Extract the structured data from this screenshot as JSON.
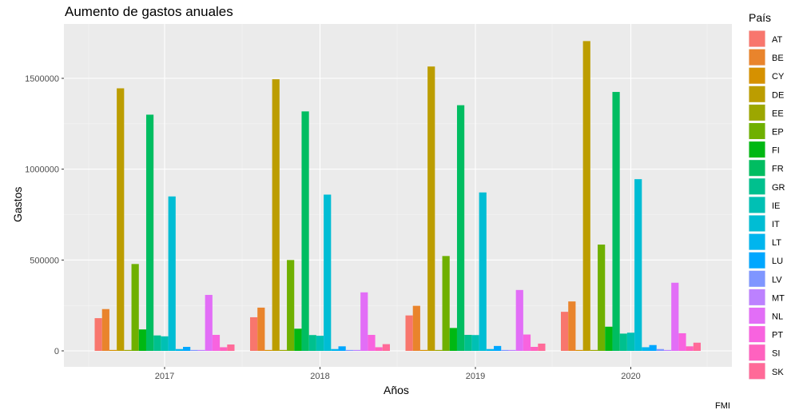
{
  "chart_data": {
    "type": "bar",
    "title": "Aumento de gastos anuales",
    "xlabel": "Años",
    "ylabel": "Gastos",
    "caption": "FMI",
    "legend_title": "País",
    "legend_position": "right",
    "grid": true,
    "ylim": [
      -80000,
      1790000
    ],
    "yticks": [
      0,
      500000,
      1000000,
      1500000
    ],
    "ytick_labels": [
      "0",
      "500000",
      "1000000",
      "1500000"
    ],
    "categories": [
      "2017",
      "2018",
      "2019",
      "2020"
    ],
    "series": [
      {
        "name": "AT",
        "color": "#F8766D",
        "values": [
          180000,
          185000,
          195000,
          215000
        ]
      },
      {
        "name": "BE",
        "color": "#E9842C",
        "values": [
          230000,
          238000,
          248000,
          272000
        ]
      },
      {
        "name": "CY",
        "color": "#D69100",
        "values": [
          5000,
          5000,
          5000,
          5000
        ]
      },
      {
        "name": "DE",
        "color": "#BC9D00",
        "values": [
          1445000,
          1495000,
          1565000,
          1705000
        ]
      },
      {
        "name": "EE",
        "color": "#9CA700",
        "values": [
          5000,
          5000,
          5000,
          5000
        ]
      },
      {
        "name": "EP",
        "color": "#6FB000",
        "values": [
          478000,
          500000,
          522000,
          585000
        ]
      },
      {
        "name": "FI",
        "color": "#00B813",
        "values": [
          118000,
          122000,
          126000,
          133000
        ]
      },
      {
        "name": "FR",
        "color": "#00BD61",
        "values": [
          1300000,
          1318000,
          1352000,
          1425000
        ]
      },
      {
        "name": "GR",
        "color": "#00C08E",
        "values": [
          85000,
          87000,
          88000,
          95000
        ]
      },
      {
        "name": "IE",
        "color": "#00C0B4",
        "values": [
          80000,
          83000,
          87000,
          100000
        ]
      },
      {
        "name": "IT",
        "color": "#00BDD4",
        "values": [
          850000,
          860000,
          872000,
          945000
        ]
      },
      {
        "name": "LT",
        "color": "#00B5EE",
        "values": [
          10000,
          10000,
          10000,
          20000
        ]
      },
      {
        "name": "LU",
        "color": "#00A7FF",
        "values": [
          22000,
          25000,
          27000,
          32000
        ]
      },
      {
        "name": "LV",
        "color": "#7F96FF",
        "values": [
          5000,
          5000,
          5000,
          10000
        ]
      },
      {
        "name": "MT",
        "color": "#BC81FF",
        "values": [
          5000,
          5000,
          5000,
          5000
        ]
      },
      {
        "name": "NL",
        "color": "#E26EF7",
        "values": [
          308000,
          322000,
          335000,
          375000
        ]
      },
      {
        "name": "PT",
        "color": "#F863DF",
        "values": [
          88000,
          88000,
          90000,
          97000
        ]
      },
      {
        "name": "SI",
        "color": "#FF62BF",
        "values": [
          20000,
          20000,
          22000,
          25000
        ]
      },
      {
        "name": "SK",
        "color": "#FF6A98",
        "values": [
          35000,
          37000,
          40000,
          45000
        ]
      }
    ]
  }
}
